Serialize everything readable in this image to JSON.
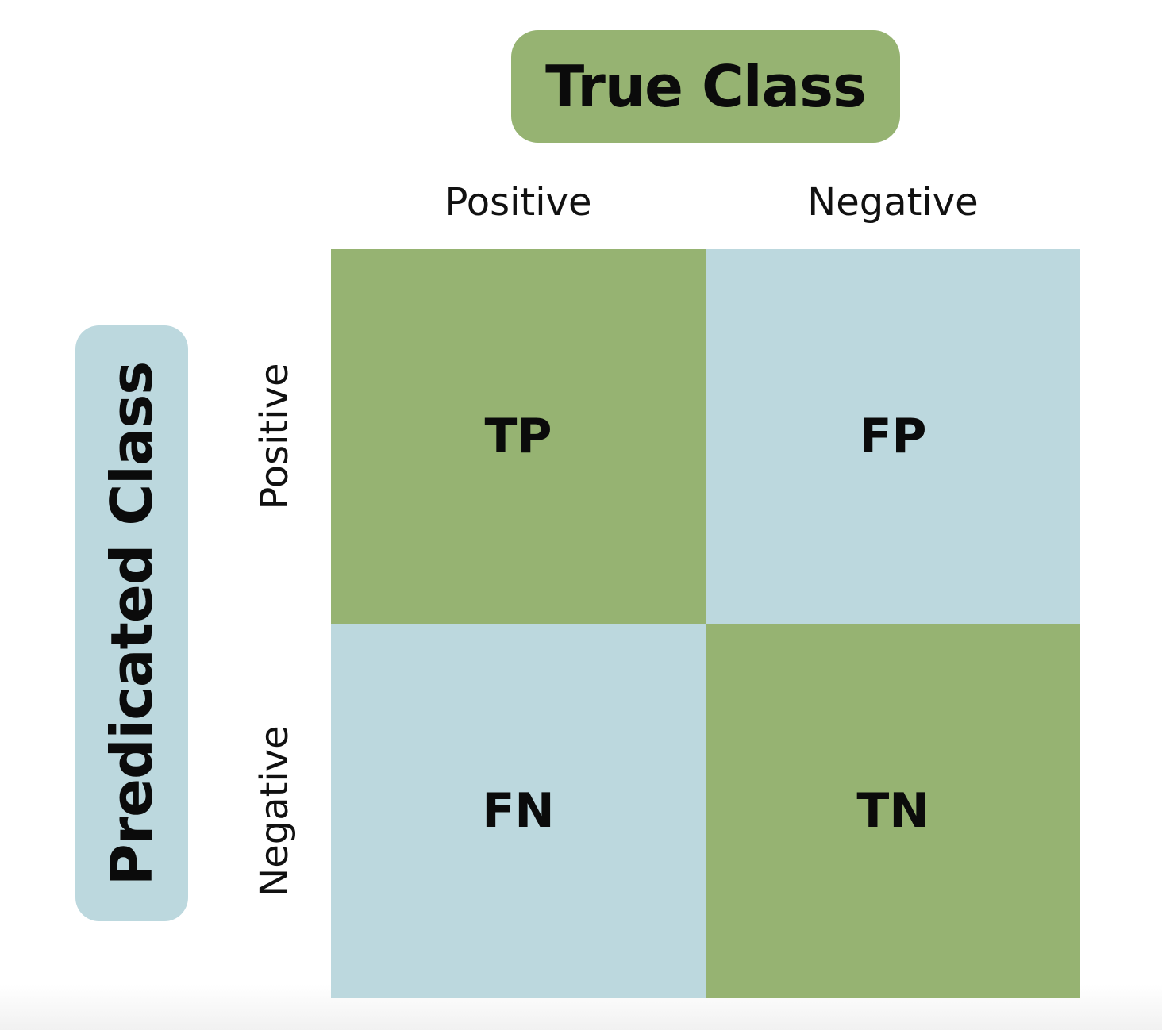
{
  "column_axis": {
    "title": "True Class",
    "labels": [
      "Positive",
      "Negative"
    ]
  },
  "row_axis": {
    "title": "Predicated Class",
    "labels": [
      "Positive",
      "Negative"
    ]
  },
  "matrix": {
    "cells": [
      [
        "TP",
        "FP"
      ],
      [
        "FN",
        "TN"
      ]
    ]
  },
  "colors": {
    "green": "#96b372",
    "blue": "#bcd8de",
    "text": "#0b0b0b"
  }
}
